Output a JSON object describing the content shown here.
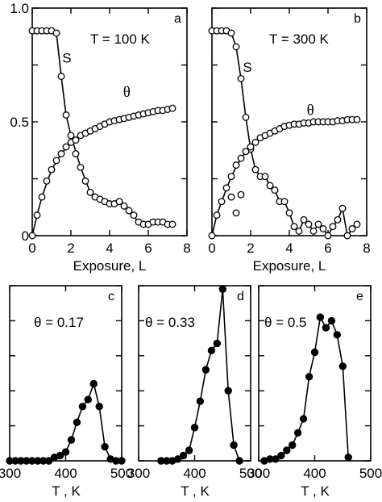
{
  "chart_data": [
    {
      "id": "a",
      "type": "line",
      "panel_label": "a",
      "annotation": "T = 100 K",
      "xlabel": "Exposure, L",
      "ylabel": "",
      "xlim": [
        0,
        8
      ],
      "ylim": [
        0,
        1.0
      ],
      "xticks": [
        0,
        2,
        4,
        6,
        8
      ],
      "yticks": [
        0,
        0.5,
        1.0
      ],
      "yticks_minor": [
        0.25,
        0.75
      ],
      "ytick_labels": [
        "0",
        "0.5",
        "1.0"
      ],
      "series": [
        {
          "name": "S",
          "marker": "open",
          "x": [
            0.0,
            0.25,
            0.5,
            0.75,
            1.0,
            1.25,
            1.5,
            1.75,
            2.0,
            2.25,
            2.5,
            2.75,
            3.0,
            3.25,
            3.5,
            3.75,
            4.0,
            4.25,
            4.5,
            4.75,
            5.0,
            5.25,
            5.5,
            5.75,
            6.0,
            6.25,
            6.5,
            6.75,
            7.0,
            7.25
          ],
          "y": [
            0.9,
            0.9,
            0.9,
            0.9,
            0.9,
            0.89,
            0.7,
            0.53,
            0.44,
            0.36,
            0.3,
            0.24,
            0.19,
            0.17,
            0.16,
            0.15,
            0.14,
            0.14,
            0.15,
            0.13,
            0.11,
            0.09,
            0.06,
            0.05,
            0.05,
            0.06,
            0.06,
            0.06,
            0.05,
            0.05
          ],
          "label_at": [
            1.55,
            0.76
          ]
        },
        {
          "name": "θ",
          "marker": "open",
          "x": [
            0.0,
            0.25,
            0.5,
            0.75,
            1.0,
            1.25,
            1.5,
            1.75,
            2.0,
            2.25,
            2.5,
            2.75,
            3.0,
            3.25,
            3.5,
            3.75,
            4.0,
            4.25,
            4.5,
            4.75,
            5.0,
            5.25,
            5.5,
            5.75,
            6.0,
            6.25,
            6.5,
            6.75,
            7.0,
            7.25
          ],
          "y": [
            0.0,
            0.09,
            0.17,
            0.24,
            0.29,
            0.33,
            0.36,
            0.39,
            0.41,
            0.42,
            0.44,
            0.45,
            0.46,
            0.47,
            0.48,
            0.49,
            0.5,
            0.505,
            0.51,
            0.515,
            0.52,
            0.525,
            0.53,
            0.535,
            0.54,
            0.545,
            0.55,
            0.55,
            0.555,
            0.56
          ],
          "label_at": [
            4.7,
            0.61
          ]
        }
      ],
      "fits": [
        {
          "of": "S",
          "x": [
            0,
            1.0,
            1.25,
            1.5,
            1.75,
            2.0,
            2.5,
            3.0,
            3.5,
            4.0,
            4.5,
            5.0,
            5.5,
            6.0,
            7.0,
            7.25
          ],
          "y": [
            0.9,
            0.9,
            0.89,
            0.7,
            0.53,
            0.44,
            0.3,
            0.19,
            0.16,
            0.14,
            0.15,
            0.11,
            0.06,
            0.05,
            0.05,
            0.05
          ]
        },
        {
          "of": "θ",
          "x": [
            0,
            0.25,
            0.5,
            1.0,
            1.5,
            2.0,
            2.5,
            3.0,
            4.0,
            5.0,
            6.0,
            7.25
          ],
          "y": [
            0.0,
            0.09,
            0.17,
            0.29,
            0.36,
            0.41,
            0.44,
            0.46,
            0.5,
            0.52,
            0.54,
            0.56
          ]
        }
      ]
    },
    {
      "id": "b",
      "type": "line",
      "panel_label": "b",
      "annotation": "T = 300 K",
      "xlabel": "Exposure, L",
      "ylabel": "",
      "xlim": [
        0,
        8
      ],
      "ylim": [
        0,
        1.0
      ],
      "xticks": [
        0,
        2,
        4,
        6,
        8
      ],
      "yticks": [
        0,
        0.25,
        0.5,
        0.75,
        1.0
      ],
      "ytick_labels": [],
      "series": [
        {
          "name": "S",
          "marker": "open",
          "x": [
            0.0,
            0.25,
            0.5,
            0.75,
            1.0,
            1.25,
            1.5,
            1.75,
            2.0,
            2.25,
            2.5,
            2.75,
            3.0,
            3.25,
            3.5,
            3.75,
            4.0,
            4.25,
            4.5,
            4.75,
            5.0,
            5.25,
            5.5,
            5.75,
            6.0,
            6.25,
            6.5,
            6.75,
            7.0,
            7.25,
            7.5
          ],
          "y": [
            0.9,
            0.9,
            0.9,
            0.9,
            0.89,
            0.83,
            0.69,
            0.52,
            0.38,
            0.29,
            0.26,
            0.26,
            0.22,
            0.2,
            0.15,
            0.15,
            0.1,
            0.04,
            0.02,
            0.07,
            0.05,
            0.02,
            0.05,
            0.03,
            0.0,
            0.04,
            0.07,
            0.12,
            0.0,
            0.03,
            0.05
          ],
          "label_at": [
            1.6,
            0.72
          ]
        },
        {
          "name": "S (outliers)",
          "marker": "open",
          "x": [
            1.0,
            1.25,
            1.5
          ],
          "y": [
            0.17,
            0.1,
            0.18
          ]
        },
        {
          "name": "θ",
          "marker": "open",
          "x": [
            0.0,
            0.25,
            0.5,
            0.75,
            1.0,
            1.25,
            1.5,
            1.75,
            2.0,
            2.25,
            2.5,
            2.75,
            3.0,
            3.25,
            3.5,
            3.75,
            4.0,
            4.25,
            4.5,
            4.75,
            5.0,
            5.25,
            5.5,
            5.75,
            6.0,
            6.25,
            6.5,
            6.75,
            7.0,
            7.25,
            7.5
          ],
          "y": [
            0.0,
            0.09,
            0.15,
            0.21,
            0.26,
            0.31,
            0.34,
            0.37,
            0.39,
            0.41,
            0.43,
            0.44,
            0.45,
            0.46,
            0.47,
            0.48,
            0.485,
            0.49,
            0.49,
            0.495,
            0.495,
            0.5,
            0.5,
            0.5,
            0.5,
            0.5,
            0.505,
            0.505,
            0.51,
            0.51,
            0.51
          ],
          "label_at": [
            4.9,
            0.53
          ]
        }
      ],
      "fits": [
        {
          "of": "S",
          "x": [
            0,
            1.0,
            1.25,
            1.5,
            1.75,
            2.0,
            2.25,
            2.5,
            2.75,
            3.0,
            3.25,
            3.5,
            3.75,
            4.0,
            4.25,
            4.5,
            4.75,
            5.0,
            5.25,
            5.5,
            5.75,
            6.0,
            6.25,
            6.5,
            6.75,
            7.0,
            7.25,
            7.5
          ],
          "y": [
            0.9,
            0.89,
            0.83,
            0.69,
            0.52,
            0.38,
            0.29,
            0.26,
            0.26,
            0.22,
            0.2,
            0.15,
            0.15,
            0.1,
            0.04,
            0.02,
            0.07,
            0.05,
            0.02,
            0.05,
            0.03,
            0.0,
            0.04,
            0.07,
            0.12,
            0.0,
            0.03,
            0.05
          ]
        },
        {
          "of": "θ",
          "x": [
            0,
            0.25,
            0.5,
            1.0,
            1.5,
            2.0,
            2.5,
            3.0,
            3.5,
            4.0,
            5.0,
            6.0,
            7.5
          ],
          "y": [
            0.0,
            0.09,
            0.15,
            0.26,
            0.34,
            0.39,
            0.43,
            0.45,
            0.47,
            0.485,
            0.495,
            0.5,
            0.51
          ]
        }
      ]
    },
    {
      "id": "c",
      "type": "line",
      "panel_label": "c",
      "annotation": "θ = 0.17",
      "xlabel": "T , K",
      "ylabel": "",
      "xlim": [
        300,
        500
      ],
      "ylim": [
        0,
        1.0
      ],
      "xticks": [
        300,
        400,
        500
      ],
      "yticks": [
        0,
        0.2,
        0.4,
        0.6,
        0.8,
        1.0
      ],
      "series": [
        {
          "name": "TPD θ = 0.17",
          "marker": "filled",
          "x": [
            300,
            310,
            320,
            330,
            340,
            350,
            360,
            370,
            380,
            390,
            400,
            410,
            420,
            430,
            440,
            450,
            460,
            470,
            480,
            490,
            500
          ],
          "y": [
            0.0,
            0.0,
            0.0,
            0.0,
            0.0,
            0.0,
            0.0,
            0.0,
            0.02,
            0.03,
            0.05,
            0.12,
            0.22,
            0.31,
            0.35,
            0.44,
            0.31,
            0.08,
            0.01,
            0.0,
            0.0
          ]
        }
      ]
    },
    {
      "id": "d",
      "type": "line",
      "panel_label": "d",
      "annotation": "θ = 0.33",
      "xlabel": "T , K",
      "ylabel": "",
      "xlim": [
        300,
        500
      ],
      "ylim": [
        0,
        1.0
      ],
      "xticks": [
        300,
        400,
        500
      ],
      "yticks": [
        0,
        0.2,
        0.4,
        0.6,
        0.8,
        1.0
      ],
      "series": [
        {
          "name": "TPD θ = 0.33",
          "marker": "filled",
          "x": [
            340,
            350,
            360,
            370,
            380,
            390,
            400,
            410,
            420,
            430,
            440,
            450,
            460,
            470,
            480
          ],
          "y": [
            0.0,
            0.0,
            0.0,
            0.01,
            0.03,
            0.06,
            0.19,
            0.34,
            0.52,
            0.63,
            0.67,
            0.98,
            0.4,
            0.09,
            0.0
          ]
        }
      ]
    },
    {
      "id": "e",
      "type": "line",
      "panel_label": "e",
      "annotation": "θ = 0.5",
      "xlabel": "T , K",
      "ylabel": "",
      "xlim": [
        300,
        500
      ],
      "ylim": [
        0,
        1.0
      ],
      "xticks": [
        300,
        400,
        500
      ],
      "yticks": [
        0,
        0.2,
        0.4,
        0.6,
        0.8,
        1.0
      ],
      "series": [
        {
          "name": "TPD θ = 0.5",
          "marker": "filled",
          "x": [
            310,
            320,
            330,
            340,
            350,
            360,
            370,
            380,
            390,
            400,
            410,
            420,
            430,
            440,
            450,
            460
          ],
          "y": [
            0.0,
            0.01,
            0.01,
            0.03,
            0.06,
            0.09,
            0.16,
            0.24,
            0.48,
            0.62,
            0.82,
            0.76,
            0.8,
            0.72,
            0.54,
            0.02
          ]
        }
      ]
    }
  ]
}
